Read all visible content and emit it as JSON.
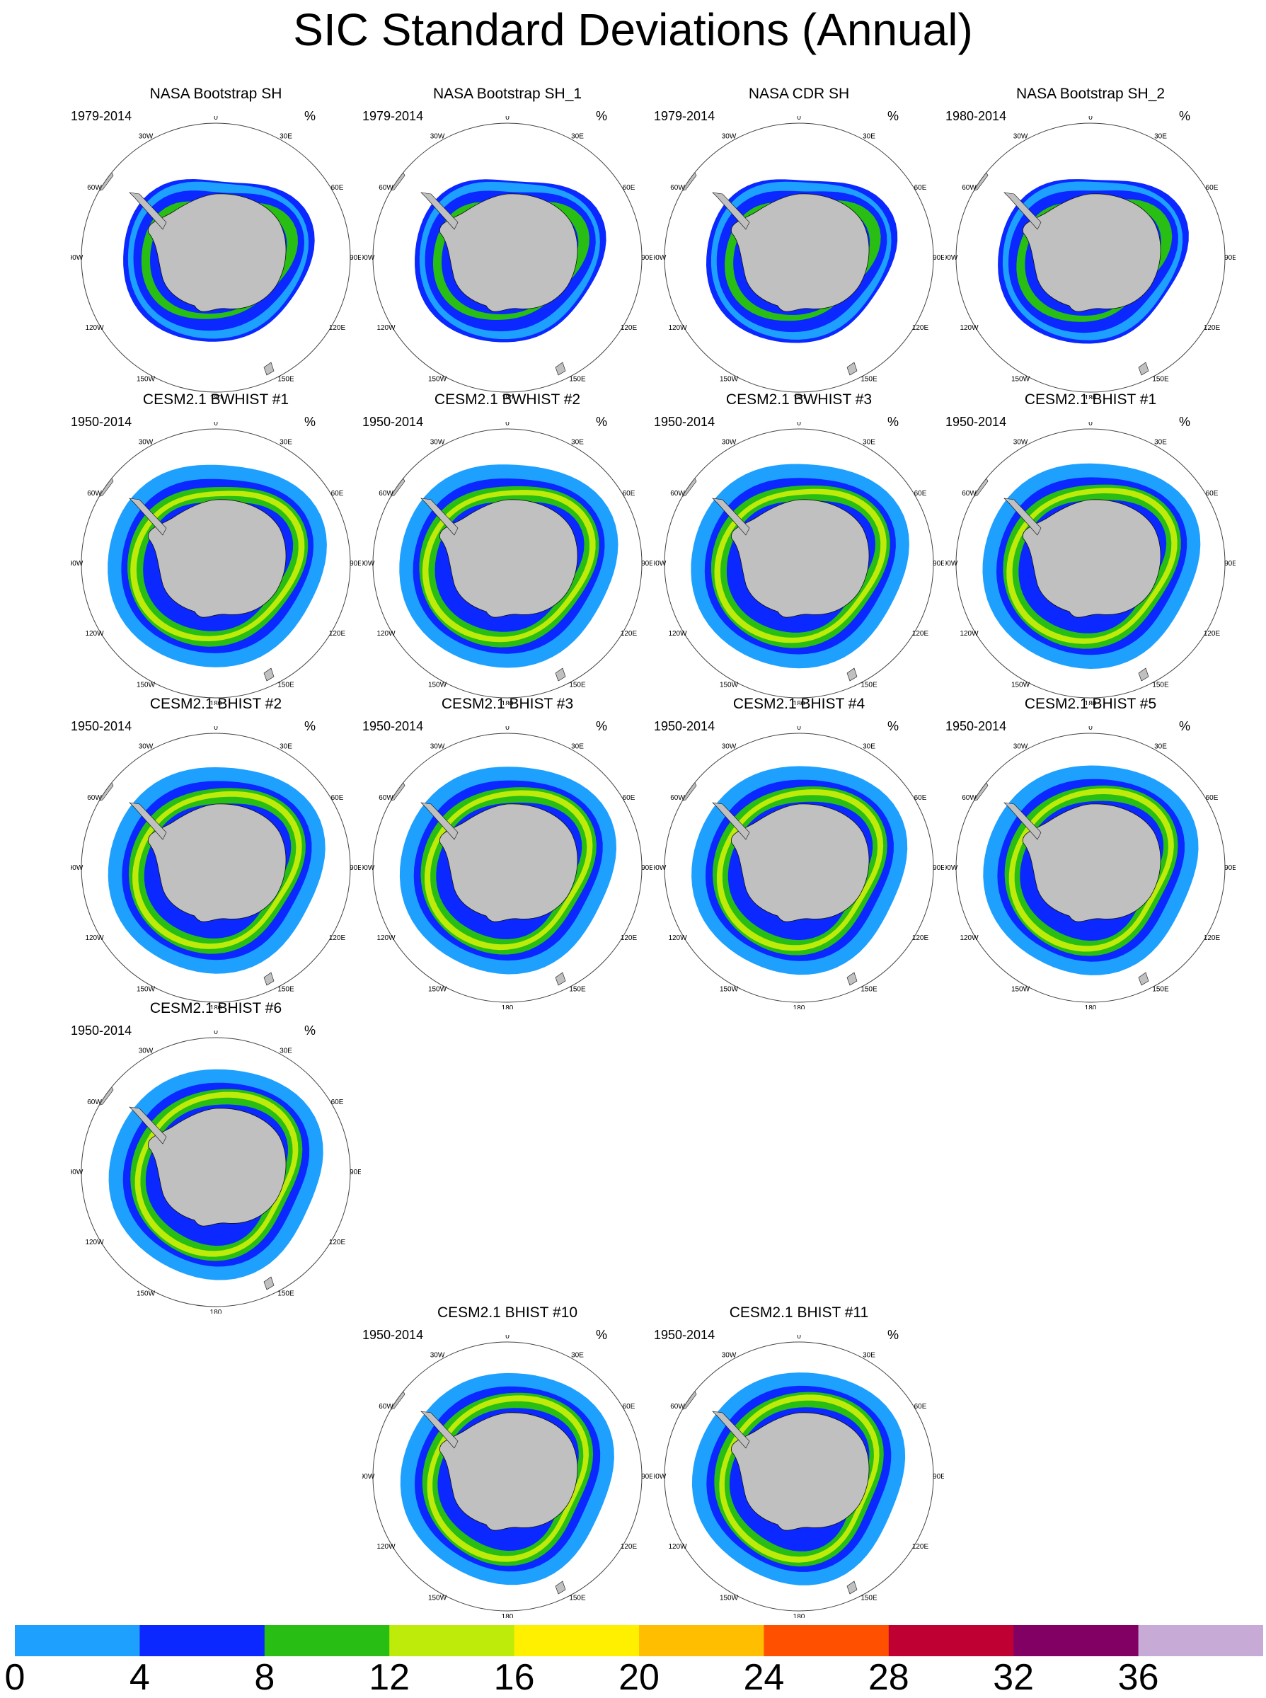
{
  "title": "SIC Standard Deviations (Annual)",
  "unit_label": "%",
  "longitude_labels": [
    "0",
    "30E",
    "60E",
    "90E",
    "120E",
    "150E",
    "180",
    "150W",
    "120W",
    "90W",
    "60W",
    "30W"
  ],
  "panels": [
    {
      "title": "NASA Bootstrap SH",
      "years": "1979-2014",
      "kind": "obs"
    },
    {
      "title": "NASA Bootstrap SH_1",
      "years": "1979-2014",
      "kind": "obs"
    },
    {
      "title": "NASA CDR SH",
      "years": "1979-2014",
      "kind": "obs"
    },
    {
      "title": "NASA Bootstrap SH_2",
      "years": "1980-2014",
      "kind": "obs"
    },
    {
      "title": "CESM2.1 BWHIST #1",
      "years": "1950-2014",
      "kind": "model"
    },
    {
      "title": "CESM2.1 BWHIST #2",
      "years": "1950-2014",
      "kind": "model"
    },
    {
      "title": "CESM2.1 BWHIST #3",
      "years": "1950-2014",
      "kind": "model"
    },
    {
      "title": "CESM2.1 BHIST #1",
      "years": "1950-2014",
      "kind": "model"
    },
    {
      "title": "CESM2.1 BHIST #2",
      "years": "1950-2014",
      "kind": "model"
    },
    {
      "title": "CESM2.1 BHIST #3",
      "years": "1950-2014",
      "kind": "model"
    },
    {
      "title": "CESM2.1 BHIST #4",
      "years": "1950-2014",
      "kind": "model"
    },
    {
      "title": "CESM2.1 BHIST #5",
      "years": "1950-2014",
      "kind": "model"
    },
    {
      "title": "CESM2.1 BHIST #6",
      "years": "1950-2014",
      "kind": "model"
    },
    {
      "title": "CESM2.1 BHIST #10",
      "years": "1950-2014",
      "kind": "model"
    },
    {
      "title": "CESM2.1 BHIST #11",
      "years": "1950-2014",
      "kind": "model"
    }
  ],
  "colorbar": {
    "ticks": [
      "0",
      "4",
      "8",
      "12",
      "16",
      "20",
      "24",
      "28",
      "32",
      "36"
    ],
    "colors": [
      "#1ea0ff",
      "#0a28ff",
      "#28be14",
      "#beeb0a",
      "#fff000",
      "#ffbe00",
      "#ff5000",
      "#be0032",
      "#820064",
      "#c8aad7"
    ]
  },
  "colors": {
    "land": "#c0c0c0",
    "ocean": "#ffffff"
  }
}
